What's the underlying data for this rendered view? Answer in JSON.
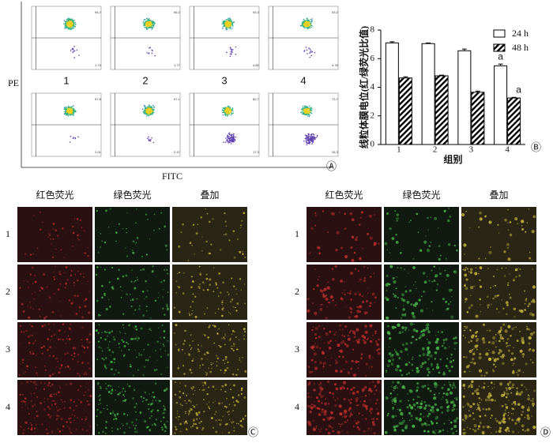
{
  "flow": {
    "y_label": "PE",
    "x_label": "FITC",
    "panel": "Ⓐ",
    "labels": [
      "1",
      "2",
      "3",
      "4"
    ],
    "plots": [
      {
        "q2": "94.2",
        "q3": "1.74"
      },
      {
        "q2": "96.2",
        "q3": "1.77"
      },
      {
        "q2": "93.3",
        "q3": "4.80"
      },
      {
        "q2": "93.2",
        "q3": "4.78"
      },
      {
        "q2": "97.8",
        "q3": "2.01"
      },
      {
        "q2": "97.1",
        "q3": "2.47"
      },
      {
        "q2": "82.7",
        "q3": "17.3"
      },
      {
        "q2": "73.7",
        "q3": "26.3"
      }
    ]
  },
  "chart_data": {
    "type": "bar",
    "y_label": "线粒体膜电位(红/绿荧光比值)",
    "x_label": "组别",
    "panel": "Ⓑ",
    "categories": [
      "1",
      "2",
      "3",
      "4"
    ],
    "series": [
      {
        "name": "24 h",
        "color": "#ffffff",
        "pattern": "solid",
        "values": [
          7.1,
          7.05,
          6.55,
          5.5
        ],
        "errors": [
          0.08,
          0.05,
          0.12,
          0.12
        ]
      },
      {
        "name": "48 h",
        "color": "#000000",
        "pattern": "hatch",
        "values": [
          4.65,
          4.8,
          3.65,
          3.25
        ],
        "errors": [
          0.08,
          0.05,
          0.08,
          0.05
        ]
      }
    ],
    "ylim": [
      0,
      8
    ],
    "yticks": [
      0,
      2,
      4,
      6,
      8
    ],
    "annotations": [
      {
        "text": "a",
        "category": "4",
        "series": "24 h"
      },
      {
        "text": "a",
        "category": "4",
        "series": "48 h"
      }
    ]
  },
  "micro_c": {
    "panel": "Ⓒ",
    "columns": [
      "红色荧光",
      "绿色荧光",
      "叠加"
    ],
    "rows": [
      "1",
      "2",
      "3",
      "4"
    ]
  },
  "micro_d": {
    "panel": "Ⓓ",
    "columns": [
      "红色荧光",
      "绿色荧光",
      "叠加"
    ],
    "rows": [
      "1",
      "2",
      "3",
      "4"
    ]
  }
}
